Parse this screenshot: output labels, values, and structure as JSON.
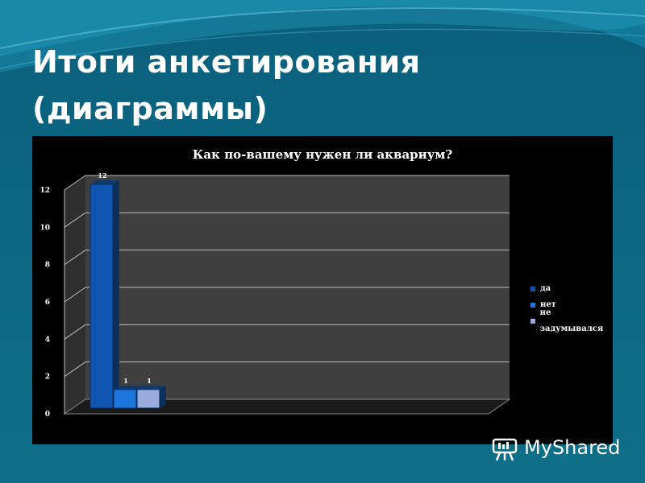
{
  "slide": {
    "title_line1": "Итоги анкетирования",
    "title_line2": "(диаграммы)",
    "watermark": "MyShared"
  },
  "colors": {
    "background": "#0f6f88",
    "panel": "#000000",
    "series": [
      "#1155b3",
      "#1c76dd",
      "#9aabdd"
    ]
  },
  "chart_data": {
    "type": "bar",
    "title": "Как по-вашему нужен ли аквариум?",
    "categories": [
      "да",
      "нет",
      "не задумывался"
    ],
    "values": [
      12,
      1,
      1
    ],
    "data_labels": [
      "12",
      "1",
      "1"
    ],
    "ylim": [
      0,
      12
    ],
    "yticks": [
      0,
      2,
      4,
      6,
      8,
      10,
      12
    ],
    "grid": true,
    "legend_position": "right"
  }
}
